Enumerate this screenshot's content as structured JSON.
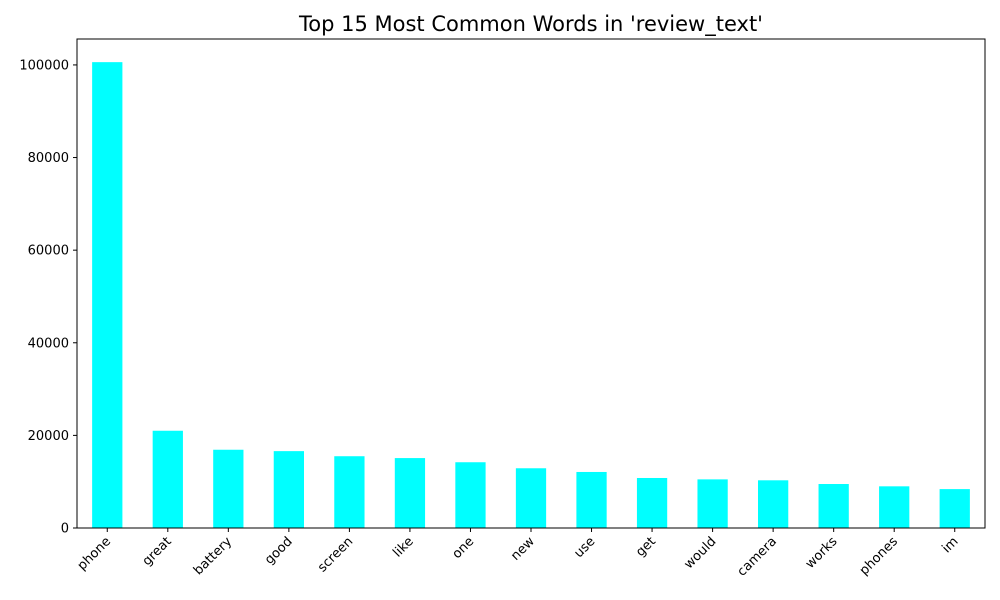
{
  "chart_data": {
    "type": "bar",
    "title": "Top 15 Most Common Words in 'review_text'",
    "xlabel": "",
    "ylabel": "",
    "categories": [
      "phone",
      "great",
      "battery",
      "good",
      "screen",
      "like",
      "one",
      "new",
      "use",
      "get",
      "would",
      "camera",
      "works",
      "phones",
      "im"
    ],
    "values": [
      100600,
      21000,
      16900,
      16600,
      15500,
      15100,
      14200,
      12900,
      12100,
      10800,
      10500,
      10300,
      9500,
      9000,
      8400
    ],
    "ylim": [
      0,
      105600
    ],
    "yticks": [
      0,
      20000,
      40000,
      60000,
      80000,
      100000
    ],
    "bar_color": "#00ffff",
    "grid": false,
    "legend": "none"
  }
}
